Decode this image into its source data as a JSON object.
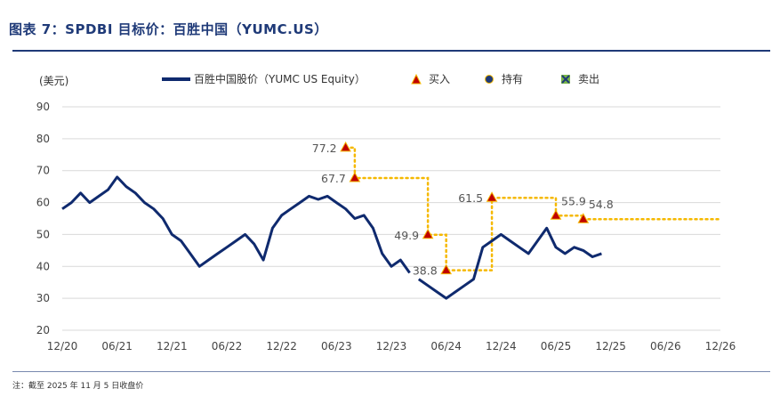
{
  "header": {
    "title": "图表 7：SPDBI 目标价：百胜中国（YUMC.US）"
  },
  "footer": {
    "note": "注：截至 2025 年 11 月 5 日收盘价"
  },
  "chart_data": {
    "type": "line",
    "ylabel": "(美元)",
    "ylim": [
      20,
      90
    ],
    "yticks": [
      20,
      30,
      40,
      50,
      60,
      70,
      80,
      90
    ],
    "xticks": [
      "12/20",
      "06/21",
      "12/21",
      "06/22",
      "12/22",
      "06/23",
      "12/23",
      "06/24",
      "12/24",
      "06/25",
      "12/25",
      "06/26",
      "12/26"
    ],
    "grid": "horizontal",
    "legend": {
      "placement": "top",
      "items": [
        {
          "key": "price",
          "label": "百胜中国股价（YUMC US Equity）",
          "color": "#0f2a6e"
        },
        {
          "key": "buy",
          "label": "买入",
          "marker": "triangle",
          "color": "#c00000"
        },
        {
          "key": "hold",
          "label": "持有",
          "marker": "circle",
          "color": "#1f3a78"
        },
        {
          "key": "sell",
          "label": "卖出",
          "marker": "x-square",
          "color": "#7ab648"
        }
      ]
    },
    "series": [
      {
        "name": "百胜中国股价（YUMC US Equity）",
        "color": "#0f2a6e",
        "x": [
          "12/20",
          "01/21",
          "02/21",
          "03/21",
          "04/21",
          "05/21",
          "06/21",
          "07/21",
          "08/21",
          "09/21",
          "10/21",
          "11/21",
          "12/21",
          "01/22",
          "02/22",
          "03/22",
          "04/22",
          "05/22",
          "06/22",
          "07/22",
          "08/22",
          "09/22",
          "10/22",
          "11/22",
          "12/22",
          "01/23",
          "02/23",
          "03/23",
          "04/23",
          "05/23",
          "06/23",
          "07/23",
          "08/23",
          "09/23",
          "10/23",
          "11/23",
          "12/23",
          "01/24",
          "02/24",
          "03/24",
          "04/24",
          "05/24",
          "06/24",
          "07/24",
          "08/24",
          "09/24",
          "10/24",
          "11/24",
          "12/24",
          "01/25",
          "02/25",
          "03/25",
          "04/25",
          "05/25",
          "06/25",
          "07/25",
          "08/25",
          "09/25",
          "10/25",
          "11/25"
        ],
        "values": [
          58,
          60,
          63,
          60,
          62,
          64,
          68,
          65,
          63,
          60,
          58,
          55,
          50,
          48,
          44,
          40,
          42,
          44,
          46,
          48,
          50,
          47,
          42,
          52,
          56,
          58,
          60,
          62,
          61,
          62,
          60,
          58,
          55,
          56,
          52,
          44,
          40,
          42,
          38,
          36,
          34,
          32,
          30,
          32,
          34,
          36,
          46,
          48,
          50,
          48,
          46,
          44,
          48,
          52,
          46,
          44,
          46,
          45,
          43,
          44
        ],
        "gap_after": "02/24"
      }
    ],
    "ratings": [
      {
        "date": "07/23",
        "price": 77.2,
        "label": "77.2",
        "rating": "buy"
      },
      {
        "date": "08/23",
        "price": 67.7,
        "label": "67.7",
        "rating": "buy"
      },
      {
        "date": "04/24",
        "price": 49.9,
        "label": "49.9",
        "rating": "buy"
      },
      {
        "date": "06/24",
        "price": 38.8,
        "label": "38.8",
        "rating": "buy"
      },
      {
        "date": "11/24",
        "price": 61.5,
        "label": "61.5",
        "rating": "buy"
      },
      {
        "date": "06/25",
        "price": 55.9,
        "label": "55.9",
        "rating": "buy"
      },
      {
        "date": "09/25",
        "price": 54.8,
        "label": "54.8",
        "rating": "buy"
      }
    ],
    "target_line_color": "#f5b800",
    "rating_colors": {
      "buy": "#c00000"
    }
  }
}
